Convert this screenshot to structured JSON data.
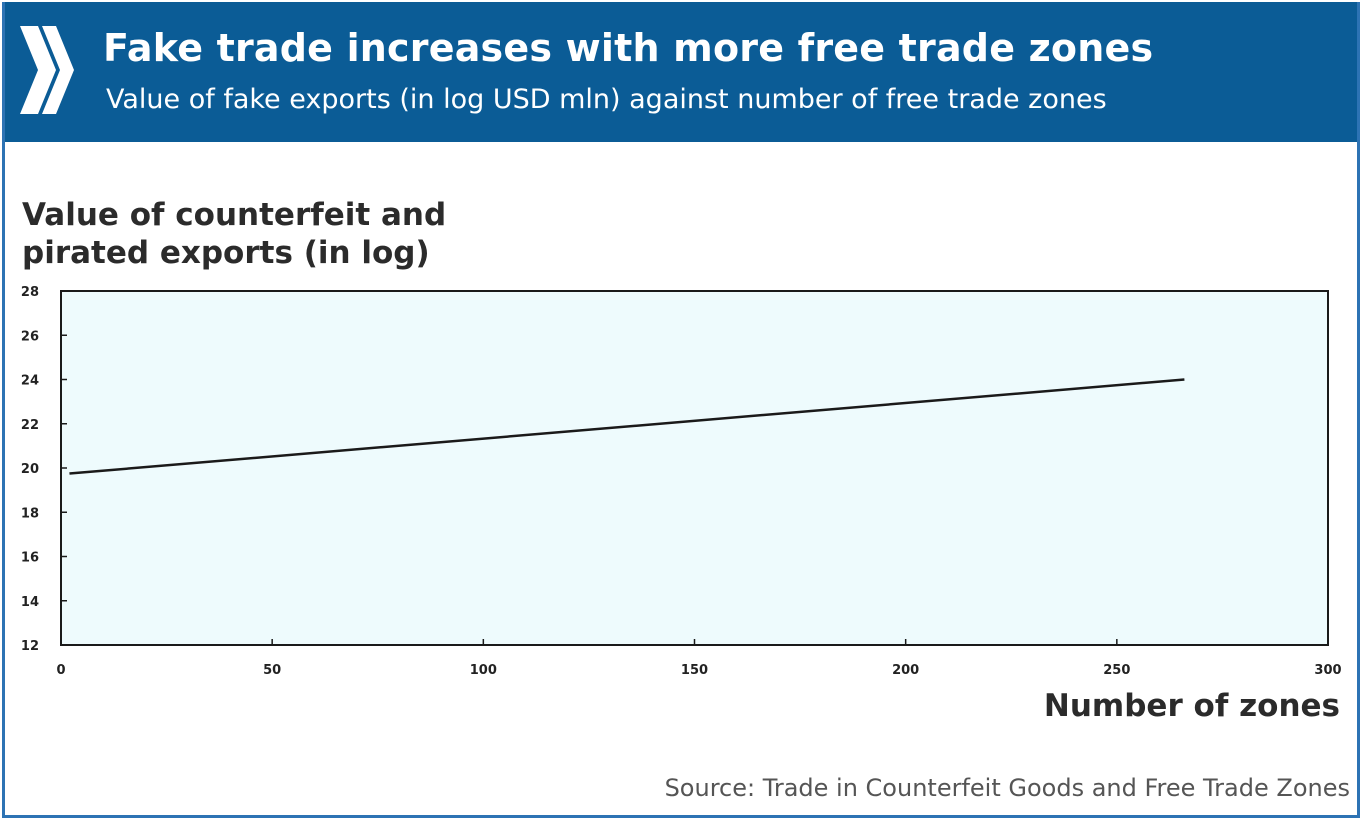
{
  "header": {
    "title": "Fake trade increases with more free trade zones",
    "subtitle": "Value of fake exports (in log USD mln) against number of free trade zones"
  },
  "footer": {
    "source": "Source: Trade in Counterfeit Goods and Free Trade Zones"
  },
  "colors": {
    "banner": "#0b5c96",
    "plot_background": "#eefbfd",
    "line": "#1a1a1a",
    "frame": "#2d73b4"
  },
  "icons": {
    "logo": "double-chevron-icon"
  },
  "chart_data": {
    "type": "line",
    "title": "",
    "ylabel_lines": [
      "Value of counterfeit and",
      "pirated exports (in log)"
    ],
    "xlabel": "Number of zones",
    "xlim": [
      0,
      300
    ],
    "ylim": [
      12,
      28
    ],
    "x_ticks": [
      0,
      50,
      100,
      150,
      200,
      250,
      300
    ],
    "y_ticks": [
      12,
      14,
      16,
      18,
      20,
      22,
      24,
      26,
      28
    ],
    "grid": false,
    "legend": "none",
    "series": [
      {
        "x": [
          2,
          266
        ],
        "y": [
          19.75,
          24.0
        ]
      }
    ]
  }
}
